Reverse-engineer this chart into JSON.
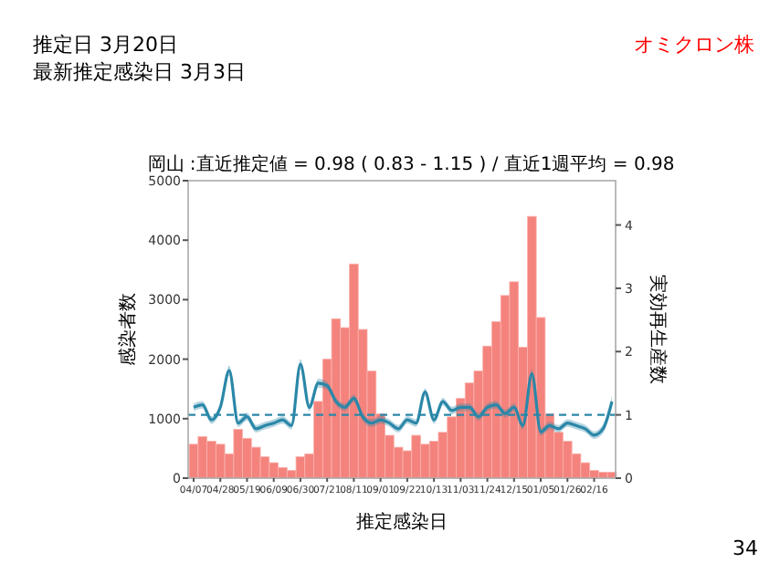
{
  "chart_data": {
    "type": "bar",
    "title": "推定日  3月20日",
    "subtitle": "最新推定感染日  3月3日",
    "xlabel": "推定感染日",
    "ylabel": "感染者数",
    "y2label": "実効再生産数",
    "annotations": [
      "オミクロン株",
      "岡山 :直近推定値 = 0.98 ( 0.83 - 1.15 ) / 直近1週平均 = 0.98",
      "34"
    ],
    "categories": [
      "04/07",
      null,
      null,
      "04/28",
      null,
      null,
      "05/19",
      null,
      null,
      "06/09",
      null,
      null,
      "06/30",
      null,
      null,
      "07/21",
      null,
      null,
      "08/11",
      null,
      null,
      "09/01",
      null,
      null,
      "09/22",
      null,
      null,
      "10/13",
      null,
      null,
      "11/03",
      null,
      null,
      "11/24",
      null,
      null,
      "12/15",
      null,
      null,
      "01/05",
      null,
      null,
      "01/26",
      null,
      null,
      "02/16",
      null,
      null
    ],
    "ylim": [
      0,
      5000
    ],
    "yticks": [
      0,
      1000,
      2000,
      3000,
      4000,
      5000
    ],
    "y2lim": [
      0,
      4.7
    ],
    "y2ticks": [
      0,
      1,
      2,
      3,
      4
    ],
    "ref_lines": [
      {
        "axis": "y2",
        "value": 1,
        "color": "#2a87a8",
        "line_style": "dashed"
      }
    ],
    "series": [
      {
        "color": "#f4837d",
        "values": [
          570,
          700,
          620,
          570,
          410,
          820,
          670,
          520,
          360,
          260,
          180,
          130,
          360,
          410,
          1290,
          2000,
          2680,
          2530,
          3600,
          2500,
          1800,
          1080,
          720,
          520,
          460,
          720,
          570,
          620,
          770,
          1030,
          1340,
          1600,
          1800,
          2220,
          2630,
          3070,
          3300,
          2200,
          4400,
          2700,
          1080,
          770,
          620,
          410,
          260,
          130,
          100,
          100
        ]
      },
      {
        "type": "line",
        "axis": "y2",
        "color": "#2a87a8",
        "values": [
          1.12,
          1.16,
          0.92,
          1.12,
          1.7,
          0.87,
          0.97,
          0.78,
          0.83,
          0.87,
          0.92,
          0.83,
          1.8,
          1.12,
          1.5,
          1.46,
          1.21,
          1.12,
          1.26,
          0.97,
          0.87,
          0.92,
          0.87,
          0.78,
          0.92,
          0.87,
          1.36,
          0.92,
          1.21,
          1.07,
          1.12,
          1.12,
          0.97,
          1.12,
          1.16,
          1.02,
          1.12,
          0.83,
          1.65,
          0.73,
          0.83,
          0.78,
          0.87,
          0.83,
          0.78,
          0.68,
          0.78,
          1.21
        ],
        "lower": [
          1.06,
          1.1,
          0.86,
          1.06,
          1.62,
          0.81,
          0.91,
          0.72,
          0.77,
          0.81,
          0.86,
          0.77,
          1.72,
          1.06,
          1.43,
          1.4,
          1.15,
          1.06,
          1.2,
          0.91,
          0.81,
          0.86,
          0.81,
          0.72,
          0.86,
          0.81,
          1.3,
          0.86,
          1.15,
          1.01,
          1.06,
          1.06,
          0.91,
          1.06,
          1.1,
          0.96,
          1.06,
          0.77,
          1.58,
          0.67,
          0.77,
          0.72,
          0.81,
          0.77,
          0.72,
          0.62,
          0.71,
          1.12
        ],
        "upper": [
          1.18,
          1.22,
          0.98,
          1.18,
          1.78,
          0.93,
          1.03,
          0.84,
          0.89,
          0.93,
          0.98,
          0.89,
          1.88,
          1.18,
          1.57,
          1.52,
          1.27,
          1.18,
          1.32,
          1.03,
          0.93,
          0.98,
          0.93,
          0.84,
          0.98,
          0.93,
          1.42,
          0.98,
          1.27,
          1.13,
          1.18,
          1.18,
          1.03,
          1.18,
          1.22,
          1.08,
          1.18,
          0.89,
          1.72,
          0.79,
          0.89,
          0.84,
          0.93,
          0.89,
          0.84,
          0.74,
          0.85,
          1.3
        ]
      }
    ]
  }
}
